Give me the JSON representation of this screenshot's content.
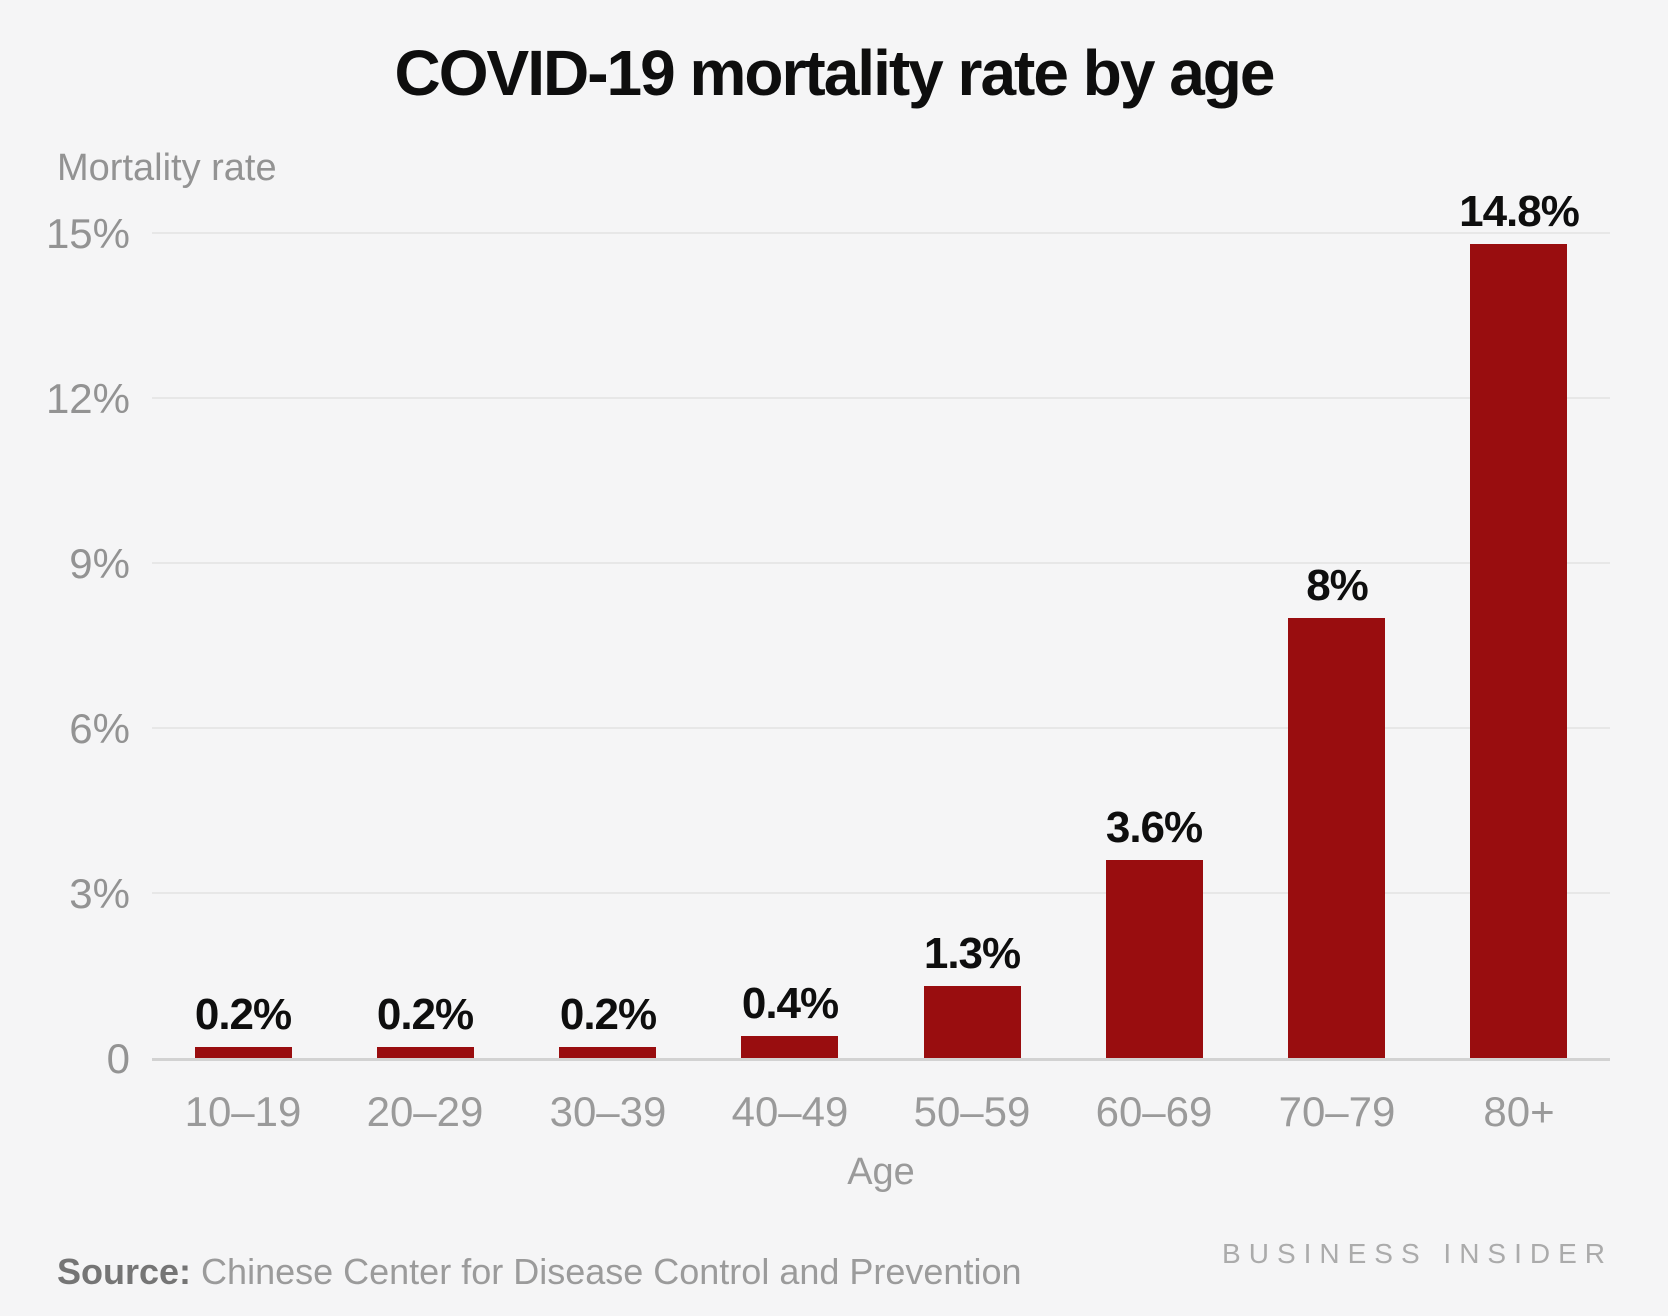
{
  "title": "COVID-19 mortality rate by age",
  "y_axis_title": "Mortality rate",
  "x_axis_title": "Age",
  "chart_data": {
    "type": "bar",
    "title": "COVID-19 mortality rate by age",
    "xlabel": "Age",
    "ylabel": "Mortality rate",
    "categories": [
      "10–19",
      "20–29",
      "30–39",
      "40–49",
      "50–59",
      "60–69",
      "70–79",
      "80+"
    ],
    "values": [
      0.2,
      0.2,
      0.2,
      0.4,
      1.3,
      3.6,
      8,
      14.8
    ],
    "value_labels": [
      "0.2%",
      "0.2%",
      "0.2%",
      "0.4%",
      "1.3%",
      "3.6%",
      "8%",
      "14.8%"
    ],
    "ylim": [
      0,
      15
    ],
    "y_ticks": [
      {
        "label": "0",
        "value": 0
      },
      {
        "label": "3%",
        "value": 3
      },
      {
        "label": "6%",
        "value": 6
      },
      {
        "label": "9%",
        "value": 9
      },
      {
        "label": "12%",
        "value": 12
      },
      {
        "label": "15%",
        "value": 15
      }
    ],
    "grid": "horizontal",
    "legend": "none",
    "bar_color": "#990d0f"
  },
  "footer": {
    "source_label": "Source:",
    "source_text": " Chinese Center for Disease Control and Prevention",
    "brand": "BUSINESS INSIDER"
  },
  "colors": {
    "background": "#f5f5f6",
    "bar": "#990d0f",
    "title_text": "#0e0e0e",
    "axis_text": "#9a9a9a",
    "gridline": "#e7e7e7",
    "axis_line": "#d2d2d2",
    "brand_text": "#ababab"
  }
}
